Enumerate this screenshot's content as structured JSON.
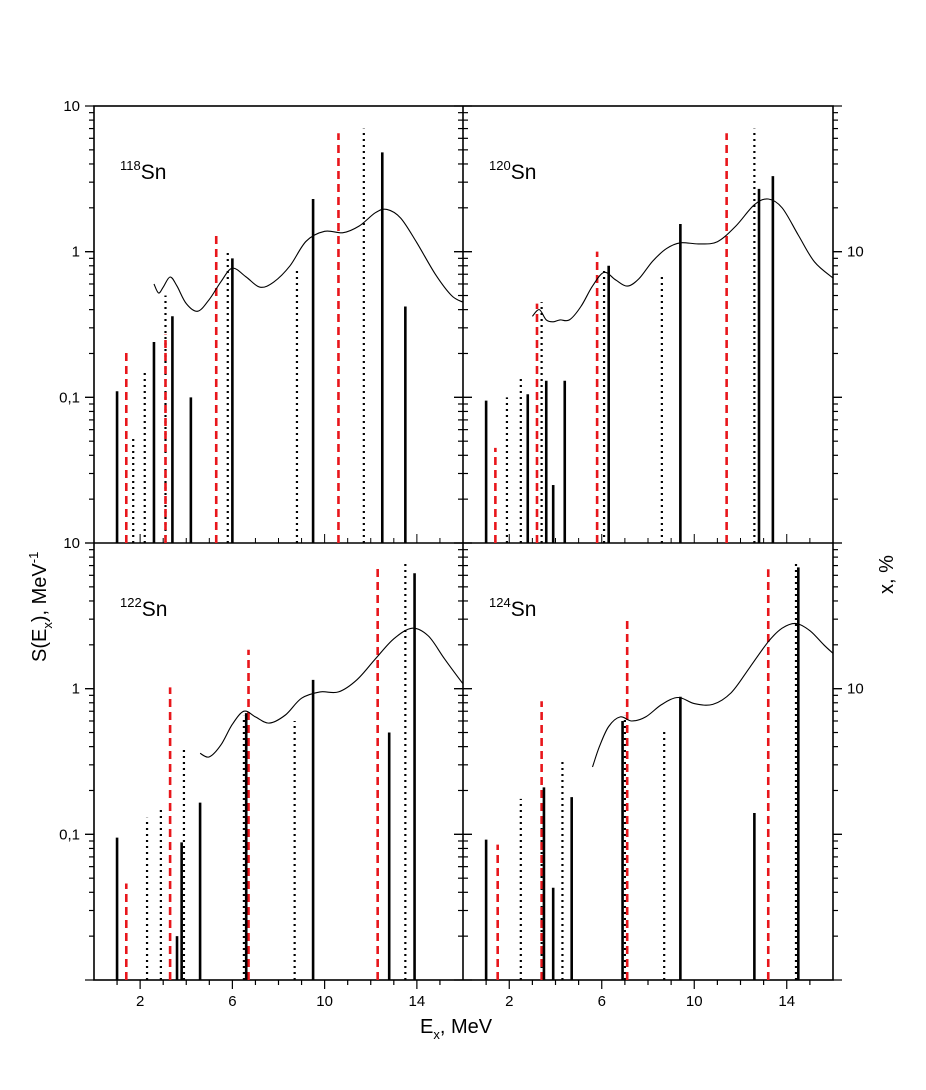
{
  "figure": {
    "xlabel_main": "E",
    "xlabel_sub": "x",
    "xlabel_rest": ", MeV",
    "ylabel_left_main": "S(E",
    "ylabel_left_sub": "x",
    "ylabel_left_mid": "), MeV",
    "ylabel_left_sup": "-1",
    "ylabel_right": "x, %"
  },
  "chart_data": {
    "type": "bar",
    "xlim_left": [
      0,
      16
    ],
    "xlim_right": [
      0,
      16
    ],
    "xticks": [
      2,
      6,
      10,
      14
    ],
    "xtick_labels": [
      "2",
      "6",
      "10",
      "14"
    ],
    "left_axis": {
      "scale": "log",
      "ylim": [
        0.01,
        10
      ],
      "tick_labels_top": [
        "10",
        "1",
        "0,1",
        "10"
      ],
      "tick_labels_bottom": [
        "1",
        "0,1"
      ],
      "top_values": [
        10,
        1,
        0.1,
        0.01
      ],
      "bottom_values": [
        1,
        0.1
      ]
    },
    "right_axis": {
      "scale": "log",
      "tick_labels_top": [
        "10"
      ],
      "tick_labels_bottom": [
        "10"
      ]
    },
    "series_styles": {
      "solid": "#000000",
      "dotted": "#000000",
      "dashed": "#e8161b",
      "curve": "#000000"
    },
    "panels": [
      {
        "isotope_mass": "118",
        "isotope_symbol": "Sn",
        "solid": [
          [
            1.0,
            0.11
          ],
          [
            2.6,
            0.24
          ],
          [
            3.4,
            0.36
          ],
          [
            4.2,
            0.1
          ],
          [
            6.0,
            0.9
          ],
          [
            9.5,
            2.3
          ],
          [
            12.5,
            4.8
          ],
          [
            13.5,
            0.42
          ]
        ],
        "dotted": [
          [
            1.7,
            0.055
          ],
          [
            2.2,
            0.155
          ],
          [
            3.1,
            0.5
          ],
          [
            5.8,
            1.0
          ],
          [
            8.8,
            0.75
          ],
          [
            11.7,
            7.0
          ]
        ],
        "dashed": [
          [
            1.4,
            0.21
          ],
          [
            3.1,
            0.27
          ],
          [
            5.3,
            1.3
          ],
          [
            10.6,
            6.5
          ]
        ],
        "curve": [
          [
            2.6,
            0.6
          ],
          [
            2.8,
            0.52
          ],
          [
            3.0,
            0.57
          ],
          [
            3.3,
            0.67
          ],
          [
            3.6,
            0.58
          ],
          [
            4.0,
            0.44
          ],
          [
            4.5,
            0.39
          ],
          [
            5.0,
            0.47
          ],
          [
            5.5,
            0.62
          ],
          [
            6.0,
            0.77
          ],
          [
            6.6,
            0.67
          ],
          [
            7.2,
            0.57
          ],
          [
            7.8,
            0.62
          ],
          [
            8.5,
            0.8
          ],
          [
            9.2,
            1.18
          ],
          [
            10.0,
            1.38
          ],
          [
            10.8,
            1.35
          ],
          [
            11.5,
            1.5
          ],
          [
            12.2,
            1.85
          ],
          [
            12.7,
            1.95
          ],
          [
            13.3,
            1.7
          ],
          [
            14.0,
            1.15
          ],
          [
            14.8,
            0.7
          ],
          [
            15.5,
            0.5
          ],
          [
            16.0,
            0.45
          ]
        ]
      },
      {
        "isotope_mass": "120",
        "isotope_symbol": "Sn",
        "solid": [
          [
            1.0,
            0.095
          ],
          [
            2.8,
            0.105
          ],
          [
            3.6,
            0.13
          ],
          [
            3.9,
            0.025
          ],
          [
            4.4,
            0.13
          ],
          [
            6.3,
            0.8
          ],
          [
            9.4,
            1.55
          ],
          [
            12.8,
            2.7
          ],
          [
            13.4,
            3.3
          ]
        ],
        "dotted": [
          [
            1.9,
            0.1
          ],
          [
            2.5,
            0.14
          ],
          [
            3.4,
            0.45
          ],
          [
            6.1,
            0.78
          ],
          [
            8.6,
            0.7
          ],
          [
            12.6,
            7.0
          ]
        ],
        "dashed": [
          [
            1.4,
            0.045
          ],
          [
            3.2,
            0.44
          ],
          [
            5.8,
            1.0
          ],
          [
            11.4,
            6.5
          ]
        ],
        "curve": [
          [
            3.0,
            0.36
          ],
          [
            3.3,
            0.4
          ],
          [
            3.6,
            0.34
          ],
          [
            3.9,
            0.33
          ],
          [
            4.2,
            0.34
          ],
          [
            4.6,
            0.34
          ],
          [
            5.1,
            0.42
          ],
          [
            5.6,
            0.58
          ],
          [
            6.1,
            0.72
          ],
          [
            6.6,
            0.64
          ],
          [
            7.1,
            0.58
          ],
          [
            7.6,
            0.65
          ],
          [
            8.2,
            0.86
          ],
          [
            8.8,
            1.05
          ],
          [
            9.4,
            1.15
          ],
          [
            10.2,
            1.13
          ],
          [
            11.0,
            1.17
          ],
          [
            11.8,
            1.5
          ],
          [
            12.6,
            2.1
          ],
          [
            13.2,
            2.3
          ],
          [
            13.8,
            2.0
          ],
          [
            14.5,
            1.3
          ],
          [
            15.2,
            0.85
          ],
          [
            16.0,
            0.66
          ]
        ]
      },
      {
        "isotope_mass": "122",
        "isotope_symbol": "Sn",
        "solid": [
          [
            1.0,
            0.095
          ],
          [
            3.6,
            0.02
          ],
          [
            3.8,
            0.088
          ],
          [
            4.6,
            0.165
          ],
          [
            6.6,
            0.68
          ],
          [
            9.5,
            1.15
          ],
          [
            12.8,
            0.5
          ],
          [
            13.9,
            6.2
          ]
        ],
        "dotted": [
          [
            2.3,
            0.13
          ],
          [
            2.9,
            0.155
          ],
          [
            3.9,
            0.38
          ],
          [
            6.5,
            0.65
          ],
          [
            8.7,
            0.6
          ],
          [
            13.5,
            7.5
          ]
        ],
        "dashed": [
          [
            1.4,
            0.046
          ],
          [
            3.3,
            1.02
          ],
          [
            6.7,
            1.85
          ],
          [
            12.3,
            6.8
          ]
        ],
        "curve": [
          [
            4.6,
            0.36
          ],
          [
            5.0,
            0.34
          ],
          [
            5.5,
            0.41
          ],
          [
            6.0,
            0.57
          ],
          [
            6.5,
            0.7
          ],
          [
            7.0,
            0.64
          ],
          [
            7.6,
            0.58
          ],
          [
            8.3,
            0.66
          ],
          [
            9.0,
            0.86
          ],
          [
            9.8,
            0.95
          ],
          [
            10.6,
            0.95
          ],
          [
            11.4,
            1.15
          ],
          [
            12.2,
            1.6
          ],
          [
            13.0,
            2.2
          ],
          [
            13.8,
            2.6
          ],
          [
            14.5,
            2.3
          ],
          [
            15.2,
            1.6
          ],
          [
            16.0,
            1.08
          ]
        ]
      },
      {
        "isotope_mass": "124",
        "isotope_symbol": "Sn",
        "solid": [
          [
            1.0,
            0.092
          ],
          [
            3.5,
            0.21
          ],
          [
            3.9,
            0.043
          ],
          [
            4.7,
            0.18
          ],
          [
            6.9,
            0.6
          ],
          [
            9.4,
            0.88
          ],
          [
            12.6,
            0.14
          ],
          [
            14.5,
            6.8
          ]
        ],
        "dotted": [
          [
            2.5,
            0.175
          ],
          [
            3.4,
            0.13
          ],
          [
            4.3,
            0.32
          ],
          [
            7.0,
            0.65
          ],
          [
            8.7,
            0.53
          ],
          [
            14.4,
            7.5
          ]
        ],
        "dashed": [
          [
            1.5,
            0.085
          ],
          [
            3.4,
            0.82
          ],
          [
            7.1,
            3.0
          ],
          [
            13.2,
            6.6
          ]
        ],
        "curve": [
          [
            5.6,
            0.29
          ],
          [
            5.9,
            0.4
          ],
          [
            6.3,
            0.55
          ],
          [
            6.8,
            0.64
          ],
          [
            7.3,
            0.6
          ],
          [
            7.9,
            0.64
          ],
          [
            8.6,
            0.78
          ],
          [
            9.3,
            0.87
          ],
          [
            10.0,
            0.79
          ],
          [
            10.8,
            0.78
          ],
          [
            11.6,
            0.94
          ],
          [
            12.4,
            1.4
          ],
          [
            13.2,
            2.1
          ],
          [
            13.8,
            2.6
          ],
          [
            14.4,
            2.8
          ],
          [
            15.0,
            2.5
          ],
          [
            15.6,
            2.0
          ],
          [
            16.0,
            1.75
          ]
        ]
      }
    ]
  }
}
